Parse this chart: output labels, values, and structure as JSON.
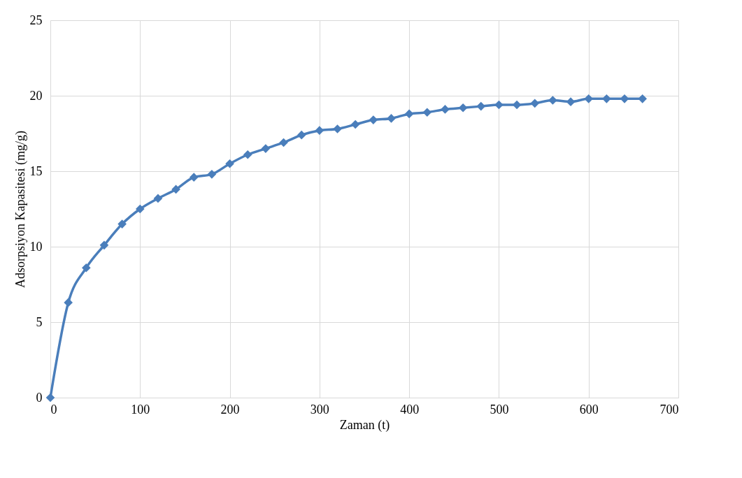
{
  "chart_data": {
    "type": "line",
    "xlabel": "Zaman (t)",
    "ylabel": "Adsorpsiyon Kapasitesi (mg/g)",
    "x": [
      0,
      20,
      40,
      60,
      80,
      100,
      120,
      140,
      160,
      180,
      200,
      220,
      240,
      260,
      280,
      300,
      320,
      340,
      360,
      380,
      400,
      420,
      440,
      460,
      480,
      500,
      520,
      540,
      560,
      580,
      600,
      620,
      640,
      660
    ],
    "series": [
      {
        "color": "#4a7ebb",
        "values": [
          0,
          6.3,
          8.6,
          10.1,
          11.5,
          12.5,
          13.2,
          13.8,
          14.6,
          14.8,
          15.5,
          16.1,
          16.5,
          16.9,
          17.4,
          17.7,
          17.8,
          18.1,
          18.4,
          18.5,
          18.8,
          18.9,
          19.1,
          19.2,
          19.3,
          19.4,
          19.4,
          19.5,
          19.7,
          19.6,
          19.8,
          19.8,
          19.8,
          19.8
        ]
      }
    ],
    "xlim": [
      0,
      700
    ],
    "xticks": [
      0,
      100,
      200,
      300,
      400,
      500,
      600,
      700
    ],
    "ylim": [
      0,
      25
    ],
    "yticks": [
      0,
      5,
      10,
      15,
      20,
      25
    ],
    "grid": true,
    "marker": "diamond",
    "line_style": "solid"
  }
}
